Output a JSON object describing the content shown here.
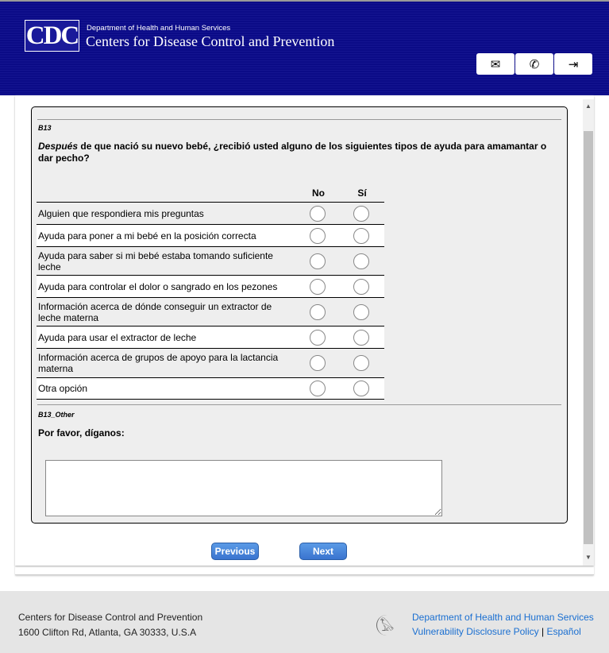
{
  "header": {
    "logo": "CDC",
    "department": "Department of Health and Human Services",
    "agency": "Centers for Disease Control and Prevention",
    "buttons": [
      {
        "icon": "mail-icon",
        "glyph": "✉"
      },
      {
        "icon": "phone-icon",
        "glyph": "✆"
      },
      {
        "icon": "sign-in-icon",
        "glyph": "⇥"
      }
    ]
  },
  "question": {
    "id": "B13",
    "emphasis": "Después",
    "text": " de que nació su nuevo bebé, ¿recibió usted alguno de los siguientes tipos de ayuda para amamantar o dar pecho?",
    "columns": [
      "No",
      "Sí"
    ],
    "rows": [
      "Alguien que respondiera mis preguntas",
      "Ayuda para poner a mi bebé en la posición correcta",
      "Ayuda para saber si mi bebé estaba tomando suficiente leche",
      "Ayuda para controlar el dolor o sangrado en los pezones",
      "Información acerca de dónde conseguir un extractor de leche materna",
      "Ayuda para usar el extractor de leche",
      "Información acerca de grupos de apoyo para la lactancia materna",
      "Otra opción"
    ]
  },
  "other": {
    "id": "B13_Other",
    "label": "Por favor, díganos:",
    "value": ""
  },
  "nav": {
    "previous": "Previous",
    "next": "Next"
  },
  "footer": {
    "name": "Centers for Disease Control and Prevention",
    "address": "1600 Clifton Rd, Atlanta, GA 30333, U.S.A",
    "links": [
      "Department of Health and Human Services",
      "Vulnerability Disclosure Policy",
      "Español"
    ],
    "separator": "|"
  }
}
